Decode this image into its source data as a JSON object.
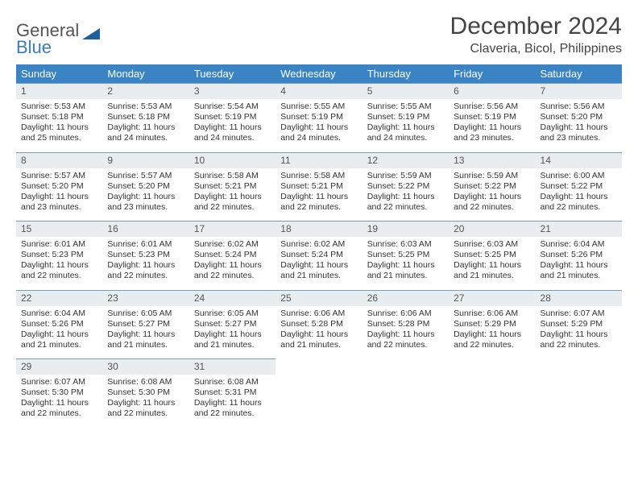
{
  "logo": {
    "word1": "General",
    "word2": "Blue"
  },
  "header": {
    "title": "December 2024",
    "location": "Claveria, Bicol, Philippines"
  },
  "style": {
    "header_bg": "#3a83c5",
    "header_text": "#ffffff",
    "daynum_bg": "#e9edef",
    "daynum_border": "#7a9cb8",
    "page_bg": "#ffffff",
    "text_color": "#333333",
    "logo_blue": "#3a7cbf",
    "title_fontsize": 30,
    "location_fontsize": 16,
    "dayheader_fontsize": 13,
    "cell_fontsize": 10.5
  },
  "columns": [
    "Sunday",
    "Monday",
    "Tuesday",
    "Wednesday",
    "Thursday",
    "Friday",
    "Saturday"
  ],
  "weeks": [
    [
      {
        "n": "1",
        "sr": "Sunrise: 5:53 AM",
        "ss": "Sunset: 5:18 PM",
        "dl": "Daylight: 11 hours and 25 minutes."
      },
      {
        "n": "2",
        "sr": "Sunrise: 5:53 AM",
        "ss": "Sunset: 5:18 PM",
        "dl": "Daylight: 11 hours and 24 minutes."
      },
      {
        "n": "3",
        "sr": "Sunrise: 5:54 AM",
        "ss": "Sunset: 5:19 PM",
        "dl": "Daylight: 11 hours and 24 minutes."
      },
      {
        "n": "4",
        "sr": "Sunrise: 5:55 AM",
        "ss": "Sunset: 5:19 PM",
        "dl": "Daylight: 11 hours and 24 minutes."
      },
      {
        "n": "5",
        "sr": "Sunrise: 5:55 AM",
        "ss": "Sunset: 5:19 PM",
        "dl": "Daylight: 11 hours and 24 minutes."
      },
      {
        "n": "6",
        "sr": "Sunrise: 5:56 AM",
        "ss": "Sunset: 5:19 PM",
        "dl": "Daylight: 11 hours and 23 minutes."
      },
      {
        "n": "7",
        "sr": "Sunrise: 5:56 AM",
        "ss": "Sunset: 5:20 PM",
        "dl": "Daylight: 11 hours and 23 minutes."
      }
    ],
    [
      {
        "n": "8",
        "sr": "Sunrise: 5:57 AM",
        "ss": "Sunset: 5:20 PM",
        "dl": "Daylight: 11 hours and 23 minutes."
      },
      {
        "n": "9",
        "sr": "Sunrise: 5:57 AM",
        "ss": "Sunset: 5:20 PM",
        "dl": "Daylight: 11 hours and 23 minutes."
      },
      {
        "n": "10",
        "sr": "Sunrise: 5:58 AM",
        "ss": "Sunset: 5:21 PM",
        "dl": "Daylight: 11 hours and 22 minutes."
      },
      {
        "n": "11",
        "sr": "Sunrise: 5:58 AM",
        "ss": "Sunset: 5:21 PM",
        "dl": "Daylight: 11 hours and 22 minutes."
      },
      {
        "n": "12",
        "sr": "Sunrise: 5:59 AM",
        "ss": "Sunset: 5:22 PM",
        "dl": "Daylight: 11 hours and 22 minutes."
      },
      {
        "n": "13",
        "sr": "Sunrise: 5:59 AM",
        "ss": "Sunset: 5:22 PM",
        "dl": "Daylight: 11 hours and 22 minutes."
      },
      {
        "n": "14",
        "sr": "Sunrise: 6:00 AM",
        "ss": "Sunset: 5:22 PM",
        "dl": "Daylight: 11 hours and 22 minutes."
      }
    ],
    [
      {
        "n": "15",
        "sr": "Sunrise: 6:01 AM",
        "ss": "Sunset: 5:23 PM",
        "dl": "Daylight: 11 hours and 22 minutes."
      },
      {
        "n": "16",
        "sr": "Sunrise: 6:01 AM",
        "ss": "Sunset: 5:23 PM",
        "dl": "Daylight: 11 hours and 22 minutes."
      },
      {
        "n": "17",
        "sr": "Sunrise: 6:02 AM",
        "ss": "Sunset: 5:24 PM",
        "dl": "Daylight: 11 hours and 22 minutes."
      },
      {
        "n": "18",
        "sr": "Sunrise: 6:02 AM",
        "ss": "Sunset: 5:24 PM",
        "dl": "Daylight: 11 hours and 21 minutes."
      },
      {
        "n": "19",
        "sr": "Sunrise: 6:03 AM",
        "ss": "Sunset: 5:25 PM",
        "dl": "Daylight: 11 hours and 21 minutes."
      },
      {
        "n": "20",
        "sr": "Sunrise: 6:03 AM",
        "ss": "Sunset: 5:25 PM",
        "dl": "Daylight: 11 hours and 21 minutes."
      },
      {
        "n": "21",
        "sr": "Sunrise: 6:04 AM",
        "ss": "Sunset: 5:26 PM",
        "dl": "Daylight: 11 hours and 21 minutes."
      }
    ],
    [
      {
        "n": "22",
        "sr": "Sunrise: 6:04 AM",
        "ss": "Sunset: 5:26 PM",
        "dl": "Daylight: 11 hours and 21 minutes."
      },
      {
        "n": "23",
        "sr": "Sunrise: 6:05 AM",
        "ss": "Sunset: 5:27 PM",
        "dl": "Daylight: 11 hours and 21 minutes."
      },
      {
        "n": "24",
        "sr": "Sunrise: 6:05 AM",
        "ss": "Sunset: 5:27 PM",
        "dl": "Daylight: 11 hours and 21 minutes."
      },
      {
        "n": "25",
        "sr": "Sunrise: 6:06 AM",
        "ss": "Sunset: 5:28 PM",
        "dl": "Daylight: 11 hours and 21 minutes."
      },
      {
        "n": "26",
        "sr": "Sunrise: 6:06 AM",
        "ss": "Sunset: 5:28 PM",
        "dl": "Daylight: 11 hours and 22 minutes."
      },
      {
        "n": "27",
        "sr": "Sunrise: 6:06 AM",
        "ss": "Sunset: 5:29 PM",
        "dl": "Daylight: 11 hours and 22 minutes."
      },
      {
        "n": "28",
        "sr": "Sunrise: 6:07 AM",
        "ss": "Sunset: 5:29 PM",
        "dl": "Daylight: 11 hours and 22 minutes."
      }
    ],
    [
      {
        "n": "29",
        "sr": "Sunrise: 6:07 AM",
        "ss": "Sunset: 5:30 PM",
        "dl": "Daylight: 11 hours and 22 minutes."
      },
      {
        "n": "30",
        "sr": "Sunrise: 6:08 AM",
        "ss": "Sunset: 5:30 PM",
        "dl": "Daylight: 11 hours and 22 minutes."
      },
      {
        "n": "31",
        "sr": "Sunrise: 6:08 AM",
        "ss": "Sunset: 5:31 PM",
        "dl": "Daylight: 11 hours and 22 minutes."
      },
      null,
      null,
      null,
      null
    ]
  ]
}
